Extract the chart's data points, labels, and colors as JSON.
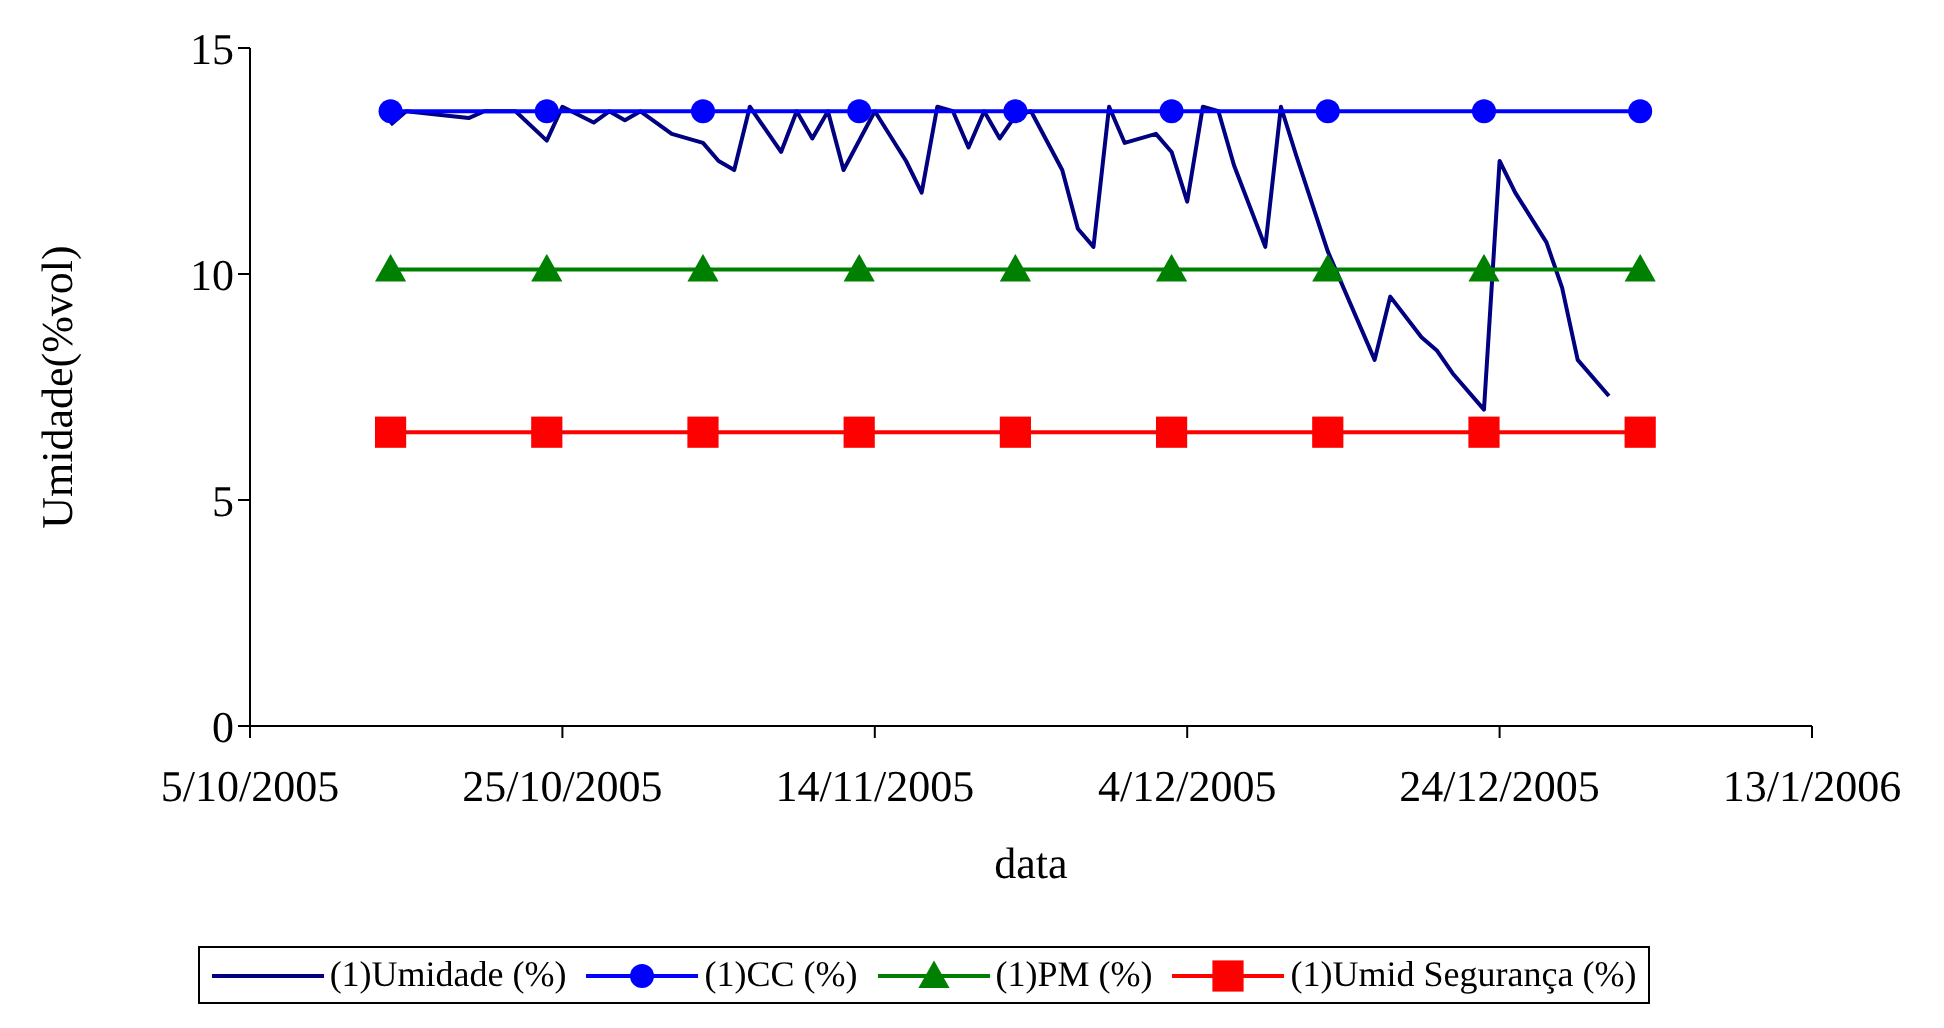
{
  "chart_data": {
    "type": "line",
    "xlabel": "data",
    "ylabel": "Umidade(%vol)",
    "xlim": [
      "2005-10-05",
      "2006-01-13"
    ],
    "xticks": [
      {
        "value": "2005-10-05",
        "label": "5/10/2005"
      },
      {
        "value": "2005-10-25",
        "label": "25/10/2005"
      },
      {
        "value": "2005-11-14",
        "label": "14/11/2005"
      },
      {
        "value": "2005-12-04",
        "label": "4/12/2005"
      },
      {
        "value": "2005-12-24",
        "label": "24/12/2005"
      },
      {
        "value": "2006-01-13",
        "label": "13/1/2006"
      }
    ],
    "ylim": [
      0,
      15
    ],
    "yticks": [
      0,
      5,
      10,
      15
    ],
    "grid": false,
    "legend": "bottom",
    "series": [
      {
        "name": "(1)Umidade (%)",
        "color": "#000080",
        "marker": "none",
        "x": [
          "2005-10-14",
          "2005-10-15",
          "2005-10-19",
          "2005-10-20",
          "2005-10-22",
          "2005-10-24",
          "2005-10-25",
          "2005-10-27",
          "2005-10-28",
          "2005-10-29",
          "2005-10-30",
          "2005-11-01",
          "2005-11-03",
          "2005-11-04",
          "2005-11-05",
          "2005-11-06",
          "2005-11-08",
          "2005-11-09",
          "2005-11-10",
          "2005-11-11",
          "2005-11-12",
          "2005-11-14",
          "2005-11-16",
          "2005-11-17",
          "2005-11-18",
          "2005-11-19",
          "2005-11-20",
          "2005-11-21",
          "2005-11-22",
          "2005-11-23",
          "2005-11-24",
          "2005-11-26",
          "2005-11-27",
          "2005-11-28",
          "2005-11-29",
          "2005-11-30",
          "2005-12-02",
          "2005-12-03",
          "2005-12-04",
          "2005-12-05",
          "2005-12-06",
          "2005-12-07",
          "2005-12-09",
          "2005-12-10",
          "2005-12-11",
          "2005-12-13",
          "2005-12-16",
          "2005-12-17",
          "2005-12-19",
          "2005-12-20",
          "2005-12-21",
          "2005-12-23",
          "2005-12-24",
          "2005-12-25",
          "2005-12-27",
          "2005-12-28",
          "2005-12-29",
          "2005-12-31"
        ],
        "values": [
          13.3,
          13.6,
          13.45,
          13.6,
          13.6,
          12.95,
          13.7,
          13.35,
          13.6,
          13.4,
          13.6,
          13.1,
          12.9,
          12.5,
          12.3,
          13.7,
          12.7,
          13.6,
          13.0,
          13.6,
          12.3,
          13.6,
          12.5,
          11.8,
          13.7,
          13.6,
          12.8,
          13.6,
          13.0,
          13.5,
          13.6,
          12.3,
          11.0,
          10.6,
          13.7,
          12.9,
          13.1,
          12.7,
          11.6,
          13.7,
          13.6,
          12.4,
          10.6,
          13.7,
          12.6,
          10.5,
          8.1,
          9.5,
          8.6,
          8.3,
          7.8,
          7.0,
          12.5,
          11.8,
          10.7,
          9.7,
          8.1,
          7.3
        ]
      },
      {
        "name": "(1)CC (%)",
        "color": "#0000ff",
        "marker": "circle",
        "x": [
          "2005-10-14",
          "2005-10-24",
          "2005-11-03",
          "2005-11-13",
          "2005-11-23",
          "2005-12-03",
          "2005-12-13",
          "2005-12-23",
          "2006-01-02"
        ],
        "values": [
          13.6,
          13.6,
          13.6,
          13.6,
          13.6,
          13.6,
          13.6,
          13.6,
          13.6
        ]
      },
      {
        "name": "(1)PM (%)",
        "color": "#008000",
        "marker": "triangle",
        "x": [
          "2005-10-14",
          "2005-10-24",
          "2005-11-03",
          "2005-11-13",
          "2005-11-23",
          "2005-12-03",
          "2005-12-13",
          "2005-12-23",
          "2006-01-02"
        ],
        "values": [
          10.1,
          10.1,
          10.1,
          10.1,
          10.1,
          10.1,
          10.1,
          10.1,
          10.1
        ]
      },
      {
        "name": "(1)Umid Segurança (%)",
        "color": "#ff0000",
        "marker": "square",
        "x": [
          "2005-10-14",
          "2005-10-24",
          "2005-11-03",
          "2005-11-13",
          "2005-11-23",
          "2005-12-03",
          "2005-12-13",
          "2005-12-23",
          "2006-01-02"
        ],
        "values": [
          6.5,
          6.5,
          6.5,
          6.5,
          6.5,
          6.5,
          6.5,
          6.5,
          6.5
        ]
      }
    ]
  }
}
